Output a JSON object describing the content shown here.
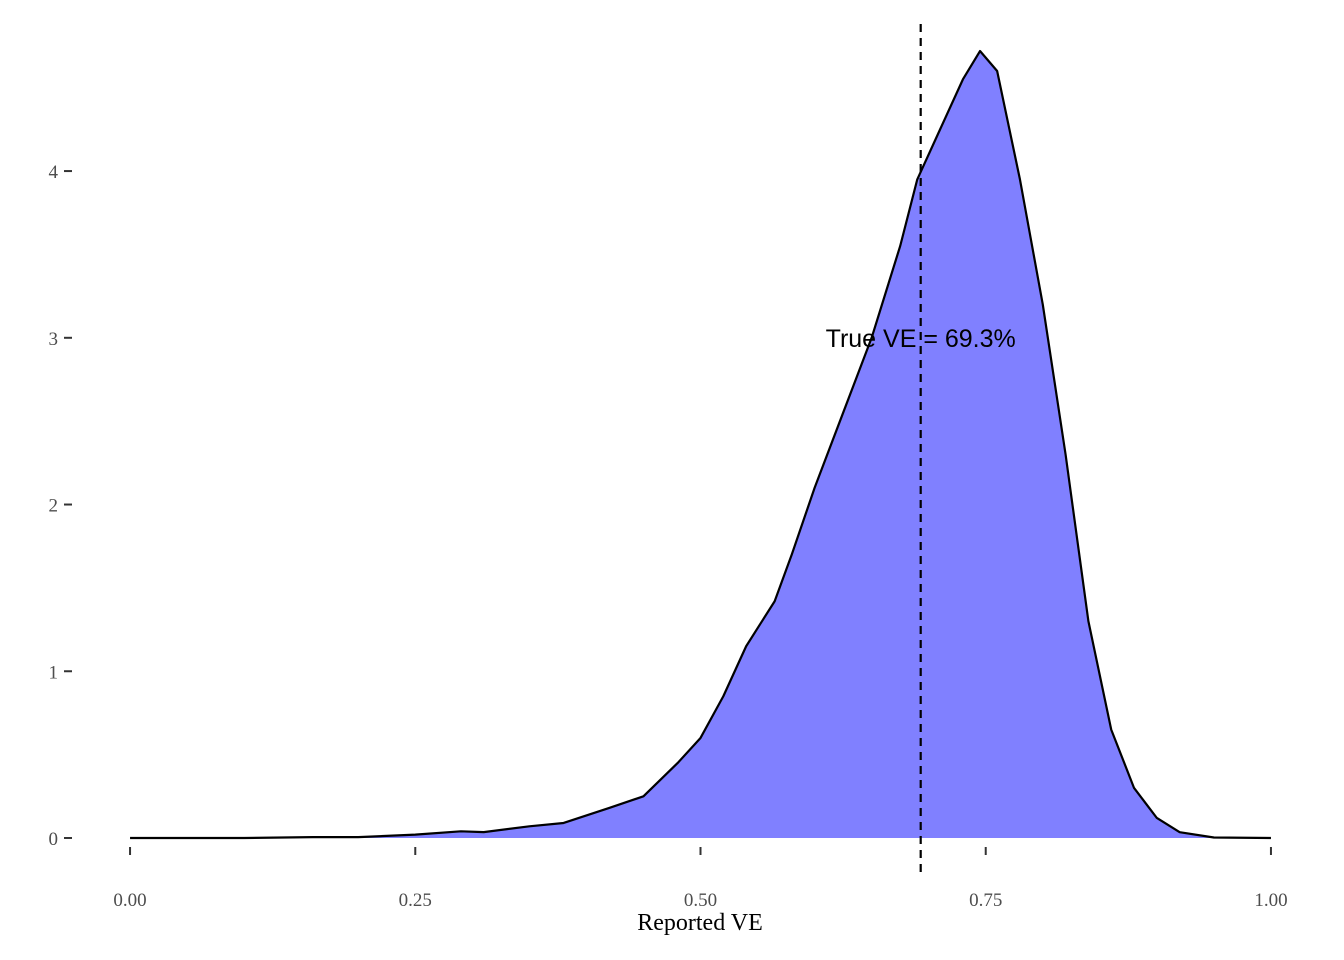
{
  "chart_data": {
    "type": "density",
    "x_label": "Reported VE",
    "x": [
      0,
      0.1,
      0.16,
      0.2,
      0.25,
      0.29,
      0.31,
      0.35,
      0.38,
      0.42,
      0.45,
      0.48,
      0.5,
      0.52,
      0.54,
      0.565,
      0.58,
      0.6,
      0.625,
      0.65,
      0.675,
      0.69,
      0.71,
      0.73,
      0.745,
      0.76,
      0.78,
      0.8,
      0.82,
      0.84,
      0.86,
      0.88,
      0.9,
      0.92,
      0.95,
      1
    ],
    "values": [
      0,
      0,
      0.005,
      0.005,
      0.02,
      0.04,
      0.035,
      0.07,
      0.09,
      0.18,
      0.25,
      0.45,
      0.6,
      0.85,
      1.15,
      1.42,
      1.7,
      2.1,
      2.55,
      3.0,
      3.55,
      3.95,
      4.25,
      4.55,
      4.72,
      4.6,
      3.95,
      3.2,
      2.3,
      1.3,
      0.65,
      0.3,
      0.12,
      0.035,
      0.003,
      0
    ],
    "color": "#8080ff",
    "line_color": "#000000",
    "xlim": [
      -0.05,
      1.05
    ],
    "ylim": [
      -0.24,
      4.96
    ],
    "xticks": [
      {
        "value": 0,
        "label": "0.00"
      },
      0.25,
      {
        "value": 0.5,
        "label": "0.50"
      },
      0.75,
      {
        "value": 1,
        "label": "1.00"
      }
    ],
    "yticks": [
      0,
      1,
      2,
      3,
      4
    ],
    "vline": 0.693,
    "annotation": {
      "text": "True VE = 69.3%",
      "x": 0.693,
      "y": 3
    }
  }
}
